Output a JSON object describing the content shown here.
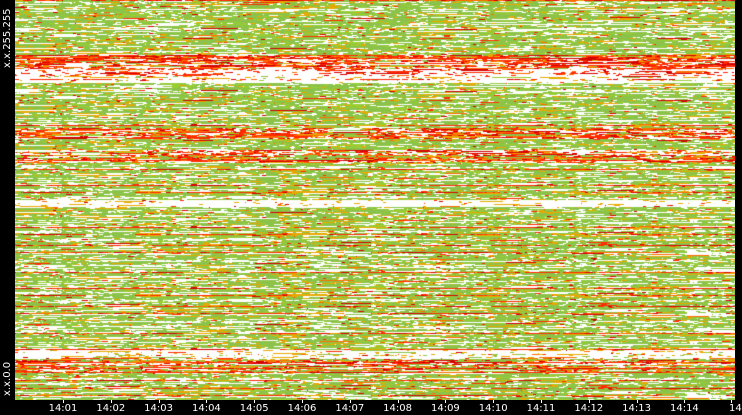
{
  "chart_data": {
    "type": "heatmap",
    "y_labels": {
      "top": "x.x.255.255",
      "bottom": "x.x.0.0"
    },
    "x_ticks": [
      "14:01",
      "14:02",
      "14:03",
      "14:04",
      "14:05",
      "14:06",
      "14:07",
      "14:08",
      "14:09",
      "14:10",
      "14:11",
      "14:12",
      "14:13",
      "14:14",
      "14"
    ],
    "color_scale": [
      "#ffffff",
      "#8bc34a",
      "#9acd32",
      "#e8a800",
      "#ff6a00",
      "#ff2a00",
      "#d40000"
    ]
  }
}
